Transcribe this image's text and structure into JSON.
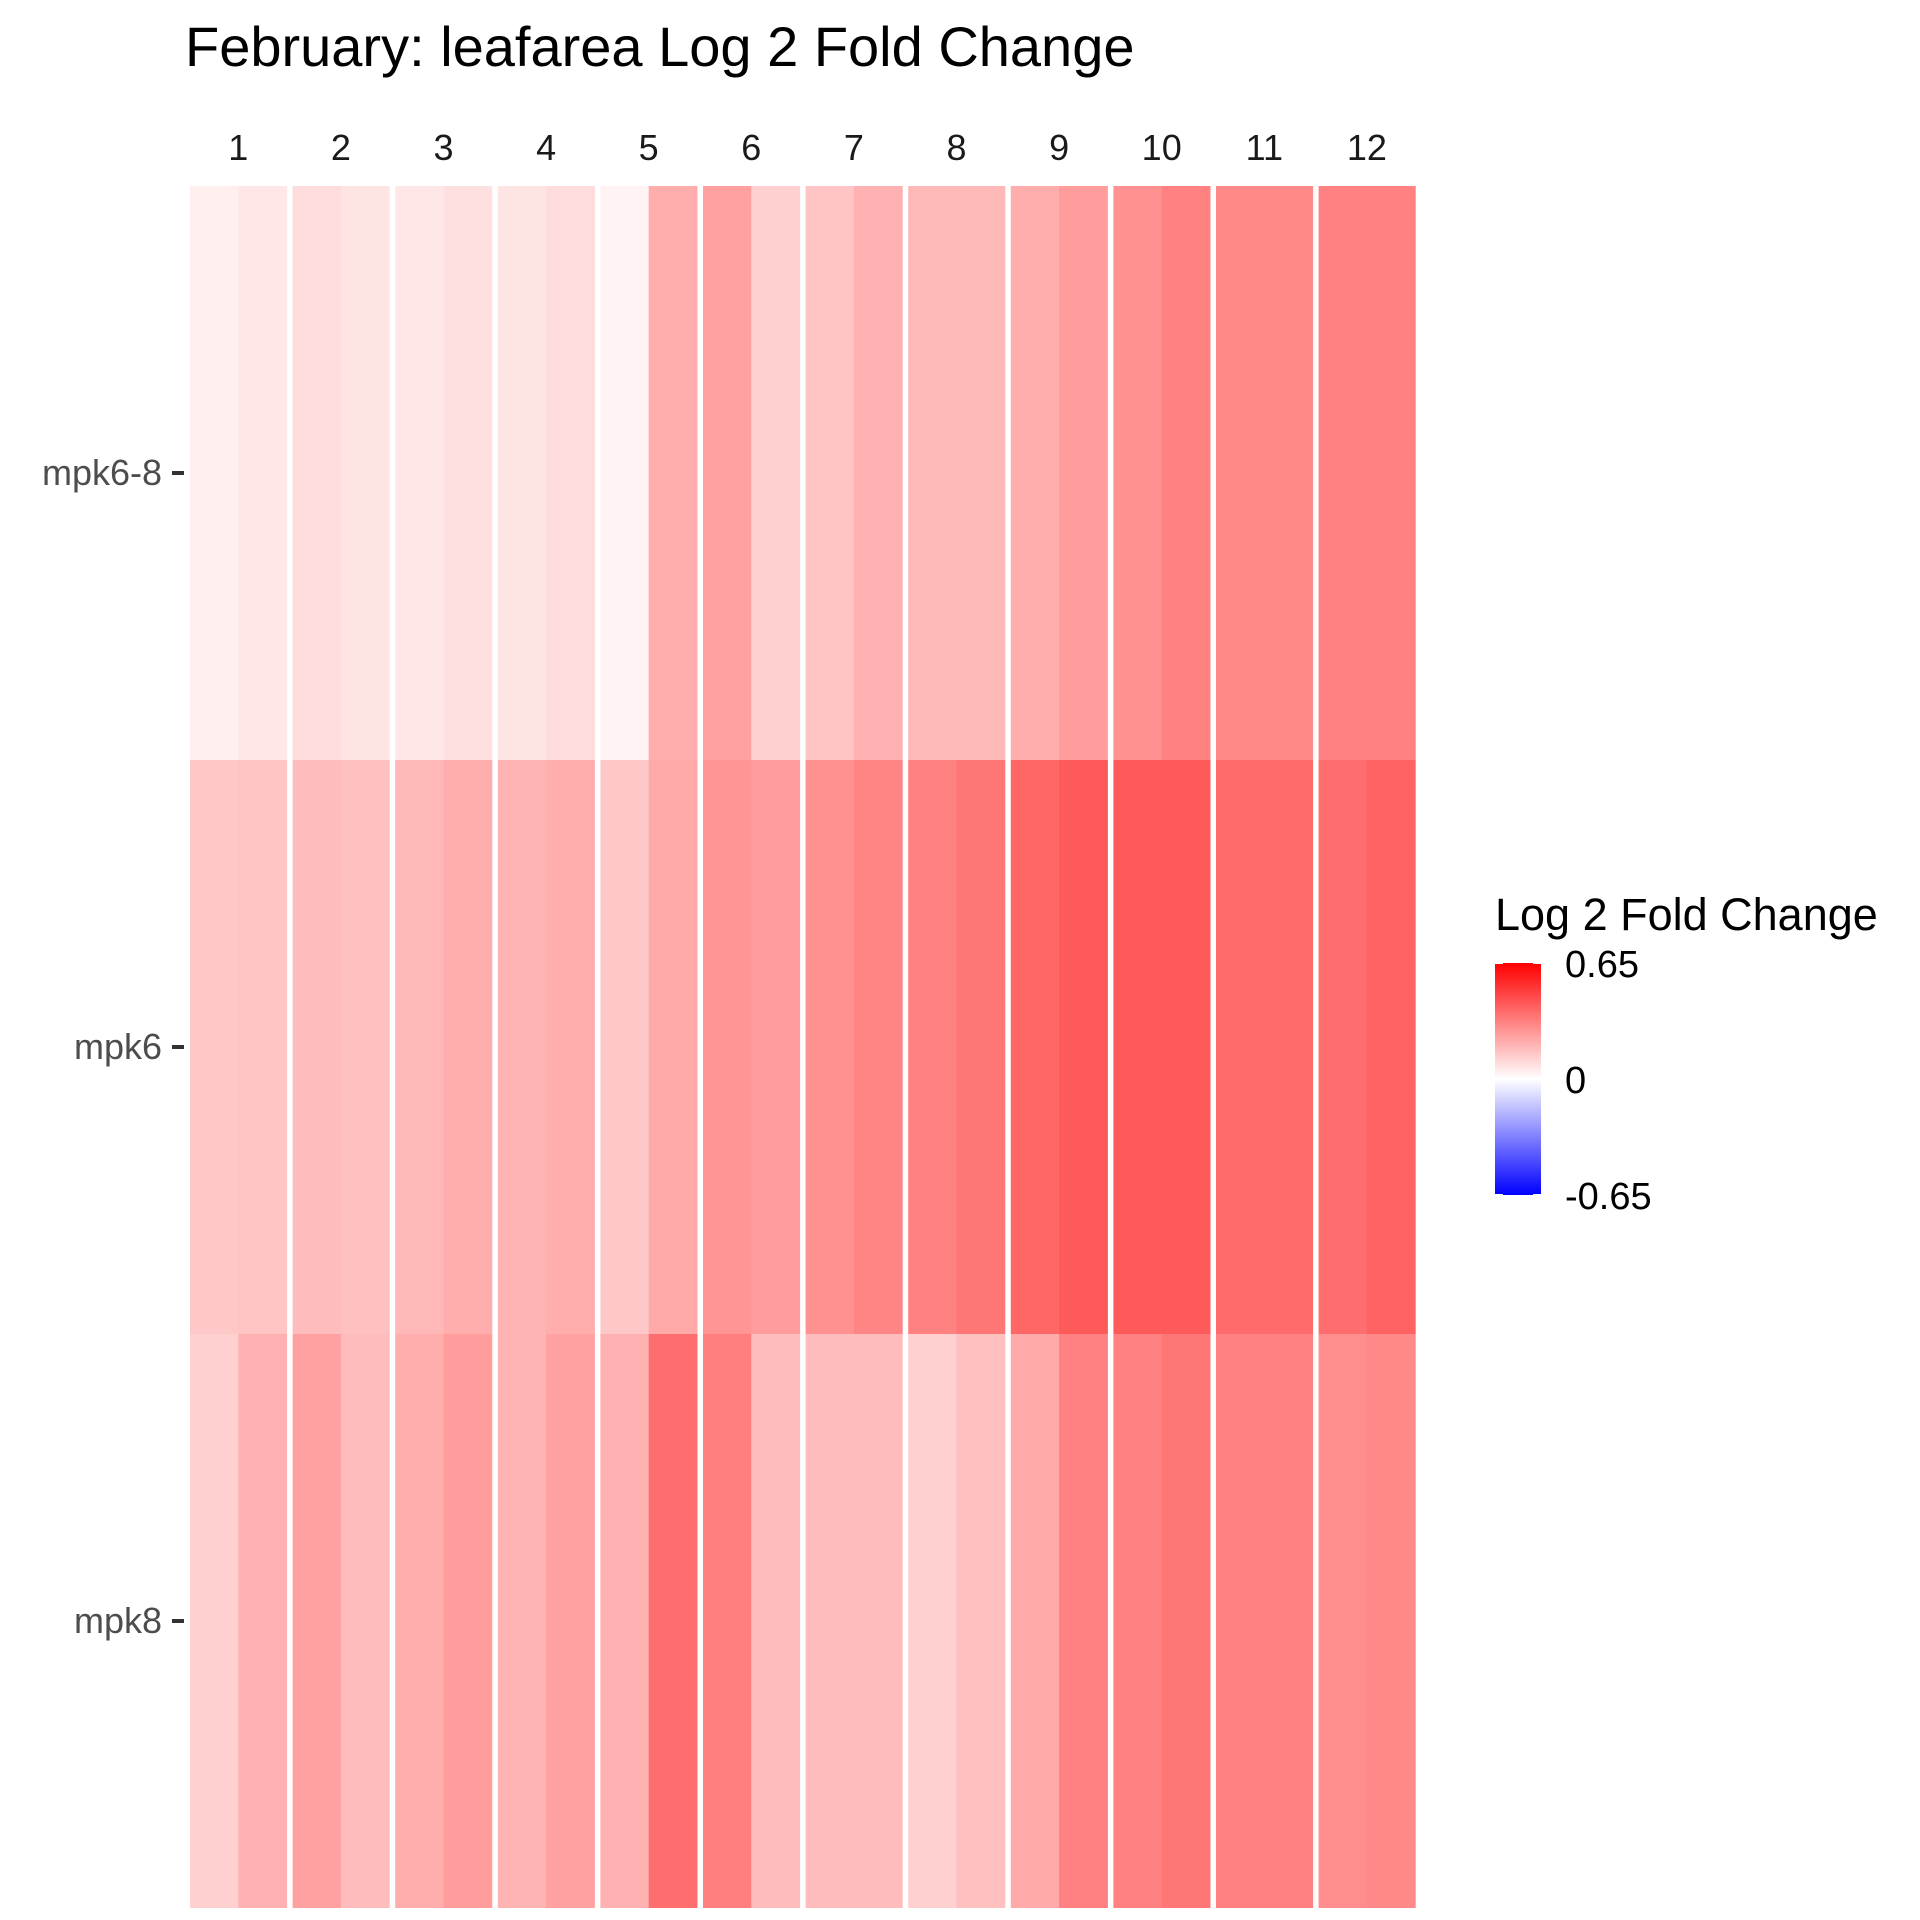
{
  "title": "February: leafarea Log 2 Fold Change",
  "chart_data": {
    "type": "heatmap",
    "title": "February: leafarea Log 2 Fold Change",
    "columns": [
      "1",
      "2",
      "3",
      "4",
      "5",
      "6",
      "7",
      "8",
      "9",
      "10",
      "11",
      "12"
    ],
    "rows": [
      "mpk6-8",
      "mpk6",
      "mpk8"
    ],
    "subcolumns_per_column": 2,
    "values": [
      [
        [
          0.04,
          0.06
        ],
        [
          0.09,
          0.07
        ],
        [
          0.06,
          0.08
        ],
        [
          0.07,
          0.09
        ],
        [
          0.03,
          0.21
        ],
        [
          0.24,
          0.12
        ],
        [
          0.15,
          0.2
        ],
        [
          0.18,
          0.18
        ],
        [
          0.21,
          0.25
        ],
        [
          0.28,
          0.32
        ],
        [
          0.3,
          0.3
        ],
        [
          0.32,
          0.32
        ]
      ],
      [
        [
          0.14,
          0.15
        ],
        [
          0.17,
          0.16
        ],
        [
          0.18,
          0.21
        ],
        [
          0.19,
          0.21
        ],
        [
          0.14,
          0.22
        ],
        [
          0.27,
          0.25
        ],
        [
          0.28,
          0.31
        ],
        [
          0.32,
          0.35
        ],
        [
          0.39,
          0.42
        ],
        [
          0.42,
          0.42
        ],
        [
          0.38,
          0.38
        ],
        [
          0.37,
          0.4
        ]
      ],
      [
        [
          0.12,
          0.2
        ],
        [
          0.24,
          0.17
        ],
        [
          0.21,
          0.25
        ],
        [
          0.19,
          0.24
        ],
        [
          0.2,
          0.37
        ],
        [
          0.33,
          0.17
        ],
        [
          0.17,
          0.17
        ],
        [
          0.12,
          0.16
        ],
        [
          0.22,
          0.32
        ],
        [
          0.32,
          0.35
        ],
        [
          0.32,
          0.32
        ],
        [
          0.29,
          0.3
        ]
      ]
    ],
    "legend": {
      "title": "Log 2 Fold Change",
      "ticks": [
        "0.65",
        "0",
        "-0.65"
      ],
      "min": -0.65,
      "max": 0.65,
      "low_color": "#0000FF",
      "mid_color": "#FFFFFF",
      "high_color": "#FF0000",
      "position": "right"
    },
    "column_axis_position": "top",
    "grid": false
  }
}
